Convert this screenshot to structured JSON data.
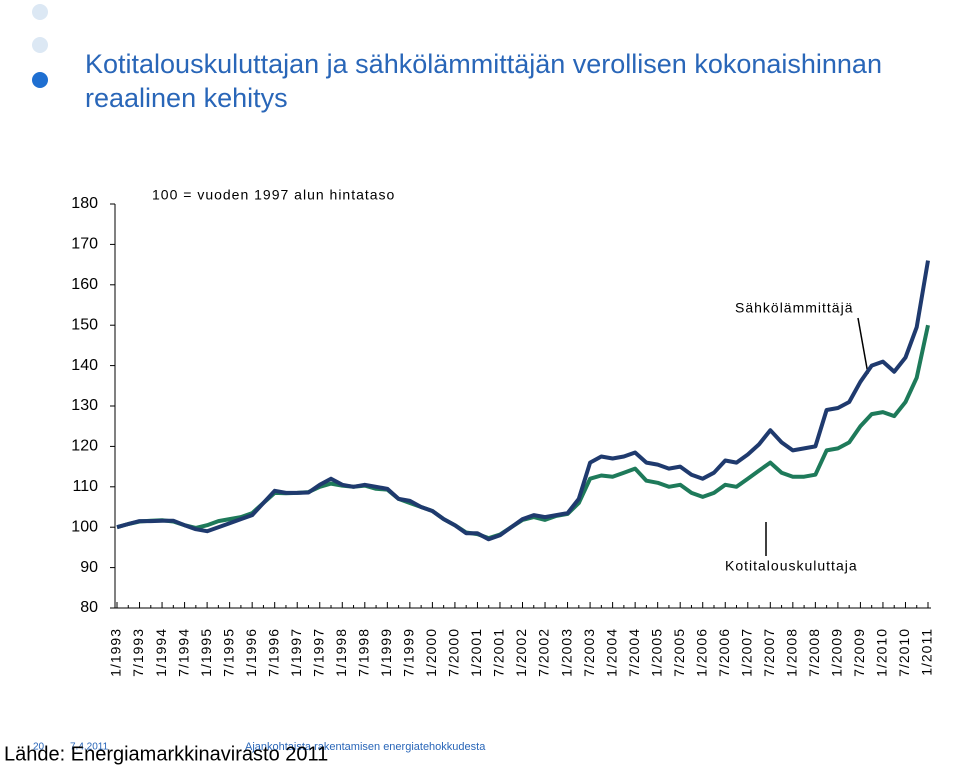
{
  "header": {
    "title_lines": [
      "Kotitalouskuluttajan ja sähkölämmittäjän verollisen kokonaishinnan",
      "reaalinen kehitys"
    ]
  },
  "chart_data": {
    "type": "line",
    "subtitle": "100 = vuoden 1997 alun hintataso",
    "annotations": [
      "Sähkölämmittäjä",
      "Kotitalouskuluttaja"
    ],
    "categories": [
      "1/1993",
      null,
      "7/1993",
      null,
      "1/1994",
      null,
      "7/1994",
      null,
      "1/1995",
      null,
      "7/1995",
      null,
      "1/1996",
      null,
      "7/1996",
      null,
      "1/1997",
      null,
      "7/1997",
      null,
      "1/1998",
      null,
      "7/1998",
      null,
      "1/1999",
      null,
      "7/1999",
      null,
      "1/2000",
      null,
      "7/2000",
      null,
      "1/2001",
      null,
      "7/2001",
      null,
      "1/2002",
      null,
      "7/2002",
      null,
      "1/2003",
      null,
      "7/2003",
      null,
      "1/2004",
      null,
      "7/2004",
      null,
      "1/2005",
      null,
      "7/2005",
      null,
      "1/2006",
      null,
      "7/2006",
      null,
      "1/2007",
      null,
      "7/2007",
      null,
      "1/2008",
      null,
      "7/2008",
      null,
      "1/2009",
      null,
      "7/2009",
      null,
      "1/2010",
      null,
      "7/2010",
      null,
      "1/2011"
    ],
    "series": [
      {
        "name": "Sähkölämmittäjä",
        "color": "#1f3a6e",
        "values": [
          100,
          100.8,
          101.5,
          101.5,
          101.6,
          101.6,
          100.5,
          99.5,
          99,
          100,
          101,
          102,
          103,
          106,
          109,
          108.5,
          108.5,
          108.6,
          110.5,
          112,
          110.5,
          110,
          110.5,
          110,
          109.5,
          107,
          106.5,
          105,
          104,
          102,
          100.5,
          98.5,
          98.5,
          97,
          98,
          100,
          102,
          103,
          102.5,
          103,
          103.5,
          107,
          116,
          117.5,
          117,
          117.5,
          118.5,
          116,
          115.5,
          114.5,
          115,
          113,
          112,
          113.5,
          116.5,
          116,
          118,
          120.5,
          124,
          121,
          119,
          119.5,
          120,
          129,
          129.5,
          131,
          136,
          140,
          141,
          138.5,
          142,
          149.5,
          166
        ]
      },
      {
        "name": "Kotitalouskuluttaja",
        "color": "#1e7a5a",
        "values": [
          100,
          100.8,
          101.4,
          101.6,
          101.7,
          101.4,
          100.5,
          99.8,
          100.5,
          101.5,
          102,
          102.5,
          103.5,
          106,
          108.5,
          108.4,
          108.5,
          108.7,
          110,
          110.8,
          110.3,
          110,
          110.3,
          109.5,
          109.3,
          107,
          106,
          105,
          104,
          102,
          100.5,
          98.7,
          98.3,
          97.3,
          98.2,
          100,
          101.8,
          102.5,
          101.8,
          102.8,
          103.3,
          106,
          112,
          112.8,
          112.5,
          113.5,
          114.5,
          111.5,
          111,
          110,
          110.5,
          108.5,
          107.5,
          108.5,
          110.5,
          110,
          112,
          114,
          116,
          113.5,
          112.5,
          112.5,
          113,
          119,
          119.5,
          121,
          125,
          128,
          128.5,
          127.5,
          131,
          137,
          150
        ]
      }
    ],
    "ylim": [
      80,
      180
    ],
    "yticks": [
      80,
      90,
      100,
      110,
      120,
      130,
      140,
      150,
      160,
      170,
      180
    ]
  },
  "footer": {
    "page": "20",
    "date": "7.4.2011",
    "presentation": "Ajankohtaista rakentamisen energiatehokkudesta",
    "source": "Lähde: Energiamarkkinavirasto 2011"
  }
}
